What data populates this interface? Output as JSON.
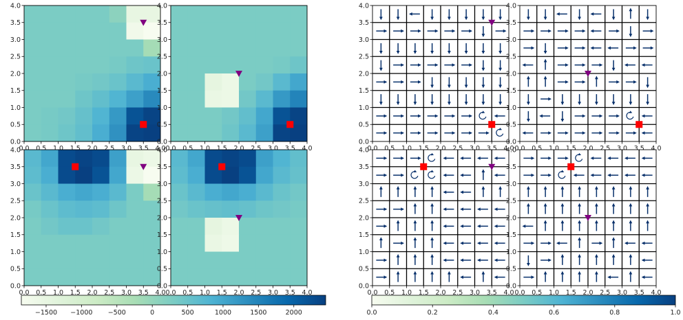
{
  "chart_data": {
    "type": "heatmap",
    "grid_size": 8,
    "axis_range": [
      0,
      4
    ],
    "ticks": [
      "0.0",
      "0.5",
      "1.0",
      "1.5",
      "2.0",
      "2.5",
      "3.0",
      "3.5",
      "4.0"
    ],
    "value_colorbar": {
      "range": [
        -1850,
        2450
      ],
      "ticks": [
        -1500,
        -1000,
        -500,
        0,
        500,
        1000,
        1500,
        2000
      ],
      "tick_labels": [
        "−1500",
        "−1000",
        "−500",
        "0",
        "500",
        "1000",
        "1500",
        "2000"
      ],
      "colormap": "GnBu"
    },
    "prob_colorbar": {
      "range": [
        0,
        1
      ],
      "ticks": [
        0,
        0.2,
        0.4,
        0.6,
        0.8,
        1.0
      ],
      "tick_labels": [
        "0.0",
        "0.2",
        "0.4",
        "0.6",
        "0.8",
        "1.0"
      ],
      "colormap": "GnBu"
    },
    "value_maps": [
      {
        "agent": [
          3.5,
          3.5
        ],
        "goal": [
          3.5,
          0.5
        ],
        "grid": [
          [
            300,
            300,
            300,
            300,
            300,
            100,
            -1500,
            -1500
          ],
          [
            300,
            300,
            300,
            300,
            300,
            300,
            -1700,
            -1850
          ],
          [
            300,
            300,
            300,
            300,
            300,
            300,
            300,
            -200
          ],
          [
            300,
            300,
            300,
            300,
            300,
            350,
            450,
            500
          ],
          [
            300,
            300,
            300,
            350,
            400,
            500,
            700,
            900
          ],
          [
            300,
            300,
            300,
            450,
            600,
            800,
            1100,
            1400
          ],
          [
            300,
            350,
            400,
            550,
            800,
            1200,
            2200,
            2400
          ],
          [
            300,
            350,
            450,
            600,
            900,
            1300,
            2400,
            2450
          ]
        ]
      },
      {
        "agent": [
          2.0,
          2.0
        ],
        "goal": [
          3.5,
          0.5
        ],
        "grid": [
          [
            300,
            300,
            300,
            300,
            300,
            300,
            300,
            300
          ],
          [
            300,
            300,
            300,
            300,
            300,
            300,
            300,
            300
          ],
          [
            300,
            300,
            300,
            300,
            300,
            300,
            300,
            300
          ],
          [
            300,
            300,
            300,
            300,
            300,
            300,
            350,
            450
          ],
          [
            300,
            300,
            -1450,
            -1600,
            300,
            400,
            700,
            1000
          ],
          [
            300,
            300,
            -1550,
            -1600,
            400,
            700,
            1200,
            1500
          ],
          [
            300,
            300,
            300,
            400,
            600,
            1000,
            2200,
            2400
          ],
          [
            300,
            300,
            300,
            450,
            700,
            1100,
            2400,
            2450
          ]
        ]
      },
      {
        "agent": [
          3.5,
          3.5
        ],
        "goal": [
          1.5,
          3.5
        ],
        "grid": [
          [
            700,
            1000,
            2300,
            2400,
            2300,
            1100,
            -1500,
            -1600
          ],
          [
            650,
            900,
            2300,
            2450,
            2200,
            1000,
            -1600,
            -1850
          ],
          [
            500,
            700,
            900,
            1000,
            900,
            700,
            300,
            -200
          ],
          [
            350,
            500,
            650,
            700,
            650,
            450,
            300,
            300
          ],
          [
            300,
            400,
            500,
            500,
            400,
            300,
            300,
            300
          ],
          [
            300,
            300,
            300,
            300,
            300,
            300,
            300,
            300
          ],
          [
            300,
            300,
            300,
            300,
            300,
            300,
            300,
            300
          ],
          [
            300,
            300,
            300,
            300,
            300,
            300,
            300,
            300
          ]
        ]
      },
      {
        "agent": [
          2.0,
          2.0
        ],
        "goal": [
          1.5,
          3.5
        ],
        "grid": [
          [
            700,
            1000,
            2300,
            2400,
            2300,
            1100,
            800,
            600
          ],
          [
            650,
            900,
            2300,
            2450,
            2200,
            1000,
            700,
            550
          ],
          [
            500,
            700,
            900,
            1000,
            900,
            700,
            500,
            400
          ],
          [
            400,
            500,
            550,
            600,
            550,
            450,
            400,
            350
          ],
          [
            300,
            300,
            -1450,
            -1600,
            300,
            300,
            300,
            300
          ],
          [
            300,
            300,
            -1550,
            -1650,
            300,
            300,
            300,
            300
          ],
          [
            300,
            300,
            300,
            300,
            300,
            300,
            300,
            300
          ],
          [
            300,
            300,
            300,
            300,
            300,
            300,
            300,
            300
          ]
        ]
      }
    ],
    "policy_maps": [
      {
        "agent": [
          3.5,
          3.5
        ],
        "goal": [
          3.5,
          0.5
        ],
        "dirs": [
          [
            "D",
            "D",
            "L",
            "D",
            "D",
            "D",
            "D",
            "D"
          ],
          [
            "R",
            "R",
            "R",
            "R",
            "R",
            "R",
            "D",
            "R"
          ],
          [
            "D",
            "D",
            "D",
            "D",
            "D",
            "D",
            "D",
            "D"
          ],
          [
            "D",
            "R",
            "R",
            "R",
            "R",
            "R",
            "D",
            "D"
          ],
          [
            "R",
            "R",
            "R",
            "D",
            "D",
            "D",
            "D",
            "D"
          ],
          [
            "D",
            "D",
            "D",
            "D",
            "D",
            "D",
            "D",
            "D"
          ],
          [
            "R",
            "R",
            "R",
            "R",
            "R",
            "R",
            "S",
            "L"
          ],
          [
            "R",
            "R",
            "R",
            "R",
            "R",
            "R",
            "R",
            "S"
          ]
        ]
      },
      {
        "agent": [
          2.0,
          2.0
        ],
        "goal": [
          3.5,
          0.5
        ],
        "dirs": [
          [
            "D",
            "D",
            "L",
            "D",
            "L",
            "D",
            "U",
            "D"
          ],
          [
            "R",
            "R",
            "R",
            "R",
            "L",
            "R",
            "D",
            "R"
          ],
          [
            "R",
            "D",
            "R",
            "R",
            "L",
            "L",
            "R",
            "R"
          ],
          [
            "L",
            "U",
            "R",
            "R",
            "R",
            "D",
            "L",
            "L"
          ],
          [
            "U",
            "U",
            "R",
            "R",
            "U",
            "R",
            "R",
            "D"
          ],
          [
            "D",
            "R",
            "D",
            "D",
            "D",
            "D",
            "D",
            "D"
          ],
          [
            "D",
            "L",
            "D",
            "R",
            "R",
            "R",
            "S",
            "L"
          ],
          [
            "L",
            "R",
            "R",
            "R",
            "R",
            "R",
            "R",
            "L"
          ]
        ]
      },
      {
        "agent": [
          3.5,
          3.5
        ],
        "goal": [
          1.5,
          3.5
        ],
        "dirs": [
          [
            "R",
            "R",
            "R",
            "S",
            "L",
            "L",
            "L",
            "L"
          ],
          [
            "R",
            "R",
            "S",
            "S",
            "L",
            "L",
            "U",
            "L"
          ],
          [
            "U",
            "U",
            "U",
            "U",
            "L",
            "L",
            "U",
            "U"
          ],
          [
            "R",
            "R",
            "U",
            "U",
            "L",
            "L",
            "L",
            "L"
          ],
          [
            "R",
            "U",
            "U",
            "U",
            "L",
            "L",
            "L",
            "L"
          ],
          [
            "U",
            "R",
            "U",
            "U",
            "L",
            "L",
            "L",
            "L"
          ],
          [
            "R",
            "U",
            "U",
            "U",
            "L",
            "L",
            "L",
            "L"
          ],
          [
            "R",
            "U",
            "U",
            "U",
            "U",
            "L",
            "U",
            "L"
          ]
        ]
      },
      {
        "agent": [
          2.0,
          2.0
        ],
        "goal": [
          1.5,
          3.5
        ],
        "dirs": [
          [
            "R",
            "R",
            "R",
            "S",
            "L",
            "L",
            "L",
            "L"
          ],
          [
            "R",
            "R",
            "S",
            "L",
            "L",
            "L",
            "L",
            "L"
          ],
          [
            "U",
            "U",
            "U",
            "U",
            "U",
            "U",
            "U",
            "U"
          ],
          [
            "U",
            "U",
            "U",
            "U",
            "U",
            "U",
            "U",
            "U"
          ],
          [
            "L",
            "U",
            "U",
            "U",
            "U",
            "U",
            "U",
            "U"
          ],
          [
            "R",
            "R",
            "L",
            "U",
            "R",
            "U",
            "L",
            "L"
          ],
          [
            "D",
            "R",
            "U",
            "U",
            "U",
            "U",
            "U",
            "L"
          ],
          [
            "R",
            "U",
            "U",
            "U",
            "U",
            "L",
            "U",
            "L"
          ]
        ]
      }
    ]
  }
}
